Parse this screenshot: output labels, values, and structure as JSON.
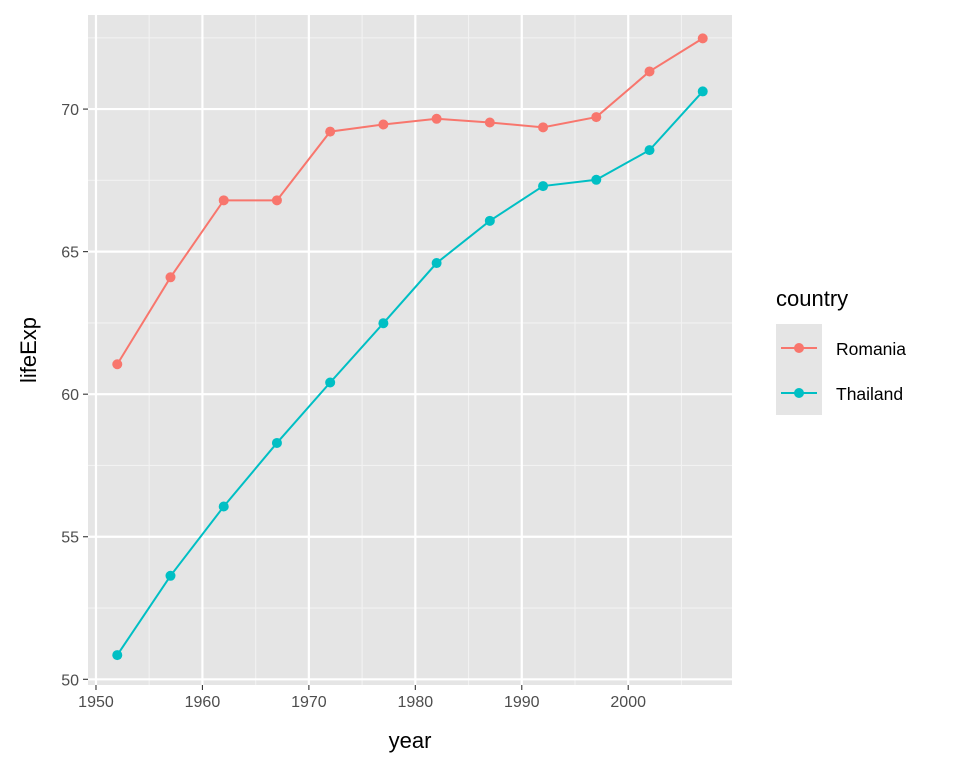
{
  "chart_data": {
    "type": "line",
    "xlabel": "year",
    "ylabel": "lifeExp",
    "xlim": [
      1949.25,
      2009.75
    ],
    "ylim": [
      49.8,
      73.3
    ],
    "x_ticks": [
      1950,
      1960,
      1970,
      1980,
      1990,
      2000
    ],
    "y_ticks": [
      50,
      55,
      60,
      65,
      70
    ],
    "grid": true,
    "panel_background": "#e5e5e5",
    "legend": {
      "title": "country",
      "placement": "right"
    },
    "x": [
      1952,
      1957,
      1962,
      1967,
      1972,
      1977,
      1982,
      1987,
      1992,
      1997,
      2002,
      2007
    ],
    "series": [
      {
        "name": "Romania",
        "color": "#f8766d",
        "values": [
          61.05,
          64.1,
          66.8,
          66.8,
          69.21,
          69.46,
          69.66,
          69.53,
          69.36,
          69.72,
          71.32,
          72.48
        ]
      },
      {
        "name": "Thailand",
        "color": "#00bfc4",
        "values": [
          50.85,
          53.63,
          56.06,
          58.29,
          60.41,
          62.49,
          64.6,
          66.08,
          67.3,
          67.52,
          68.56,
          70.62
        ]
      }
    ]
  }
}
